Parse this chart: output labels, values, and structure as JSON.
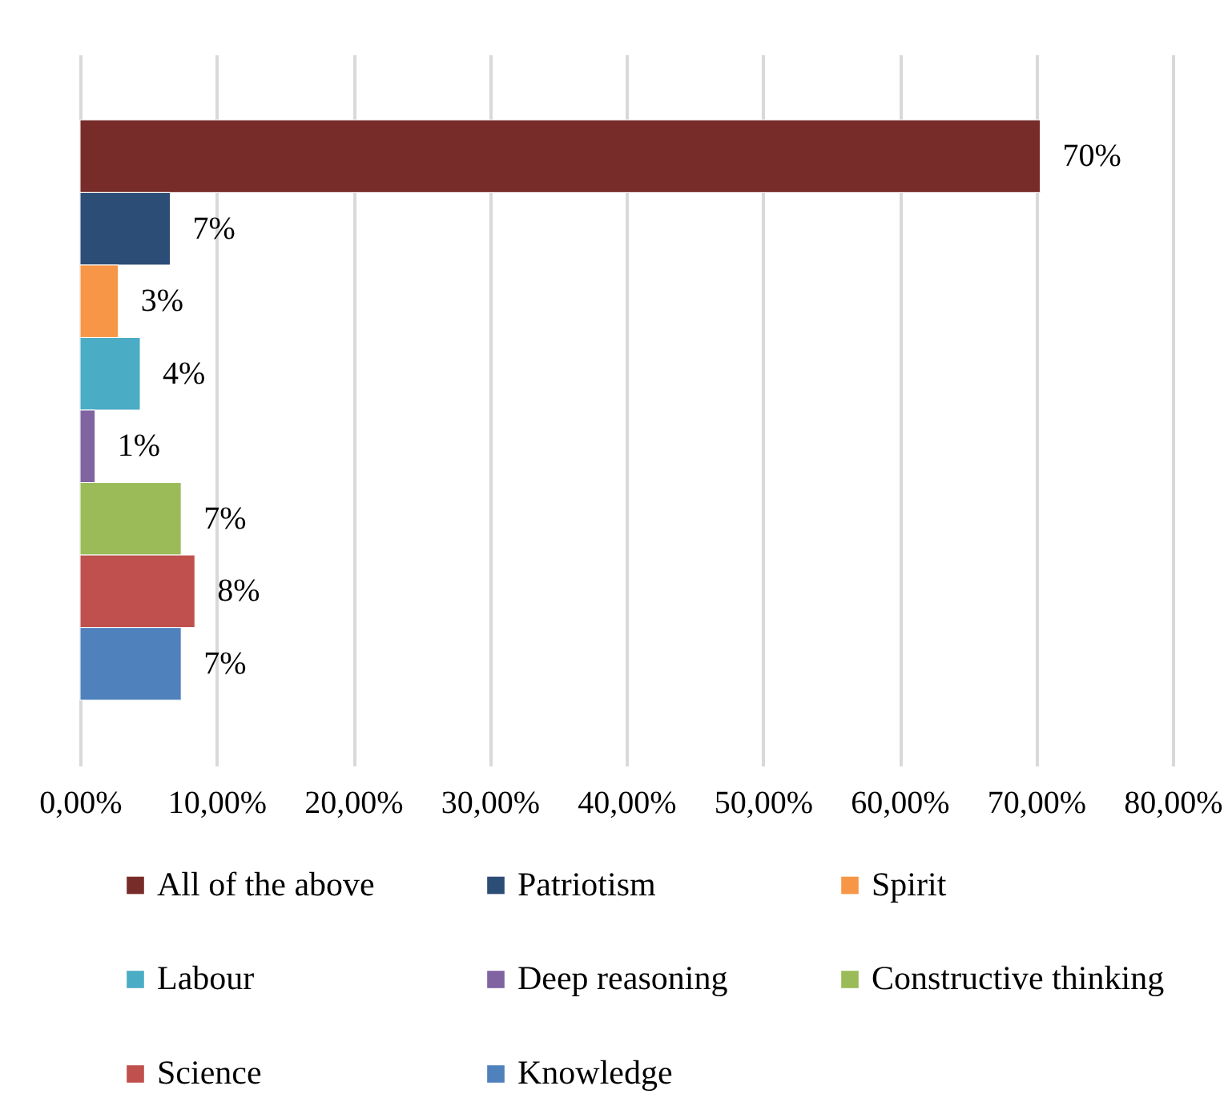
{
  "chart_data": {
    "type": "bar",
    "orientation": "horizontal",
    "categories": [
      null
    ],
    "series": [
      {
        "name": "All of the above",
        "color": "#772c2a",
        "values": [
          70.3
        ],
        "value_labels": [
          "70%"
        ]
      },
      {
        "name": "Patriotism",
        "color": "#2c4d75",
        "values": [
          6.6
        ],
        "value_labels": [
          "7%"
        ]
      },
      {
        "name": "Spirit",
        "color": "#f79646",
        "values": [
          2.8
        ],
        "value_labels": [
          "3%"
        ]
      },
      {
        "name": "Labour",
        "color": "#4bacc6",
        "values": [
          4.4
        ],
        "value_labels": [
          "4%"
        ]
      },
      {
        "name": "Deep reasoning",
        "color": "#8064a2",
        "values": [
          1.1
        ],
        "value_labels": [
          "1%"
        ]
      },
      {
        "name": "Constructive thinking",
        "color": "#9bbb59",
        "values": [
          7.4
        ],
        "value_labels": [
          "7%"
        ]
      },
      {
        "name": "Science",
        "color": "#c0504d",
        "values": [
          8.4
        ],
        "value_labels": [
          "8%"
        ]
      },
      {
        "name": "Knowledge",
        "color": "#4f81bd",
        "values": [
          7.4
        ],
        "value_labels": [
          "7%"
        ]
      }
    ],
    "xlim": [
      0,
      80
    ],
    "xticks": [
      {
        "value": 0,
        "label": "0,00%"
      },
      {
        "value": 10,
        "label": "10,00%"
      },
      {
        "value": 20,
        "label": "20,00%"
      },
      {
        "value": 30,
        "label": "30,00%"
      },
      {
        "value": 40,
        "label": "40,00%"
      },
      {
        "value": 50,
        "label": "50,00%"
      },
      {
        "value": 60,
        "label": "60,00%"
      },
      {
        "value": 70,
        "label": "70,00%"
      },
      {
        "value": 80,
        "label": "80,00%"
      }
    ],
    "grid": "x",
    "legend": "bottom",
    "tick_labels": "x"
  }
}
